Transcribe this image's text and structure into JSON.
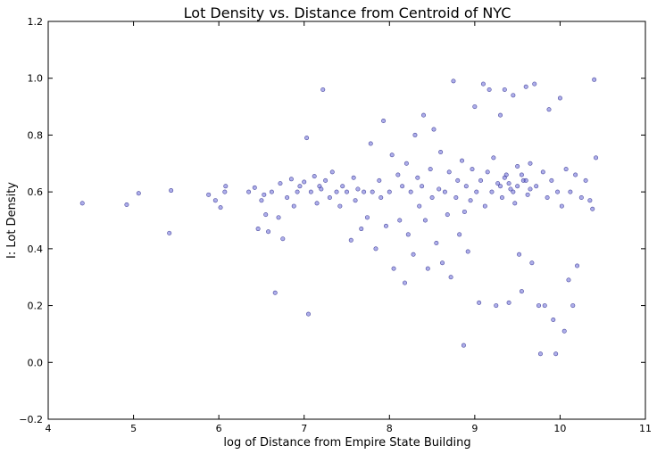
{
  "chart_data": {
    "type": "scatter",
    "title": "Lot Density vs. Distance from Centroid of NYC",
    "xlabel": "log of Distance from Empire State Building",
    "ylabel": "I: Lot Density",
    "xlim": [
      4,
      11
    ],
    "ylim": [
      -0.2,
      1.2
    ],
    "xticks": [
      "4",
      "5",
      "6",
      "7",
      "8",
      "9",
      "10",
      "11"
    ],
    "yticks": [
      "−0.2",
      "0.0",
      "0.2",
      "0.4",
      "0.6",
      "0.8",
      "1.0",
      "1.2"
    ],
    "grid": false,
    "legend": "none",
    "marker_color": "#6b6bd8",
    "marker_edge": "#1a1a80",
    "series": [
      {
        "points": [
          [
            4.4,
            0.56
          ],
          [
            4.92,
            0.555
          ],
          [
            5.06,
            0.595
          ],
          [
            5.42,
            0.455
          ],
          [
            5.44,
            0.605
          ],
          [
            5.88,
            0.59
          ],
          [
            5.96,
            0.57
          ],
          [
            6.02,
            0.545
          ],
          [
            6.07,
            0.6
          ],
          [
            6.08,
            0.62
          ],
          [
            6.35,
            0.6
          ],
          [
            6.42,
            0.615
          ],
          [
            6.46,
            0.47
          ],
          [
            6.5,
            0.57
          ],
          [
            6.53,
            0.59
          ],
          [
            6.55,
            0.52
          ],
          [
            6.58,
            0.46
          ],
          [
            6.62,
            0.6
          ],
          [
            6.66,
            0.245
          ],
          [
            6.7,
            0.51
          ],
          [
            6.72,
            0.63
          ],
          [
            6.75,
            0.435
          ],
          [
            6.8,
            0.58
          ],
          [
            6.85,
            0.645
          ],
          [
            6.88,
            0.55
          ],
          [
            6.92,
            0.6
          ],
          [
            6.95,
            0.62
          ],
          [
            7.0,
            0.635
          ],
          [
            7.03,
            0.79
          ],
          [
            7.05,
            0.17
          ],
          [
            7.08,
            0.6
          ],
          [
            7.12,
            0.655
          ],
          [
            7.15,
            0.56
          ],
          [
            7.18,
            0.62
          ],
          [
            7.2,
            0.61
          ],
          [
            7.22,
            0.96
          ],
          [
            7.25,
            0.64
          ],
          [
            7.3,
            0.58
          ],
          [
            7.33,
            0.67
          ],
          [
            7.38,
            0.6
          ],
          [
            7.42,
            0.55
          ],
          [
            7.45,
            0.62
          ],
          [
            7.5,
            0.6
          ],
          [
            7.55,
            0.43
          ],
          [
            7.58,
            0.65
          ],
          [
            7.6,
            0.57
          ],
          [
            7.63,
            0.61
          ],
          [
            7.67,
            0.47
          ],
          [
            7.7,
            0.6
          ],
          [
            7.74,
            0.51
          ],
          [
            7.78,
            0.77
          ],
          [
            7.8,
            0.6
          ],
          [
            7.84,
            0.4
          ],
          [
            7.88,
            0.64
          ],
          [
            7.9,
            0.58
          ],
          [
            7.93,
            0.85
          ],
          [
            7.96,
            0.48
          ],
          [
            8.0,
            0.6
          ],
          [
            8.03,
            0.73
          ],
          [
            8.05,
            0.33
          ],
          [
            8.1,
            0.66
          ],
          [
            8.12,
            0.5
          ],
          [
            8.15,
            0.62
          ],
          [
            8.18,
            0.28
          ],
          [
            8.2,
            0.7
          ],
          [
            8.22,
            0.45
          ],
          [
            8.25,
            0.6
          ],
          [
            8.28,
            0.38
          ],
          [
            8.3,
            0.8
          ],
          [
            8.33,
            0.65
          ],
          [
            8.35,
            0.55
          ],
          [
            8.38,
            0.62
          ],
          [
            8.4,
            0.87
          ],
          [
            8.42,
            0.5
          ],
          [
            8.45,
            0.33
          ],
          [
            8.48,
            0.68
          ],
          [
            8.5,
            0.58
          ],
          [
            8.52,
            0.82
          ],
          [
            8.55,
            0.42
          ],
          [
            8.58,
            0.61
          ],
          [
            8.6,
            0.74
          ],
          [
            8.62,
            0.35
          ],
          [
            8.65,
            0.6
          ],
          [
            8.68,
            0.52
          ],
          [
            8.7,
            0.67
          ],
          [
            8.72,
            0.3
          ],
          [
            8.75,
            0.99
          ],
          [
            8.78,
            0.58
          ],
          [
            8.8,
            0.64
          ],
          [
            8.82,
            0.45
          ],
          [
            8.85,
            0.71
          ],
          [
            8.87,
            0.06
          ],
          [
            8.88,
            0.53
          ],
          [
            8.9,
            0.62
          ],
          [
            8.92,
            0.39
          ],
          [
            8.95,
            0.57
          ],
          [
            8.97,
            0.68
          ],
          [
            9.0,
            0.9
          ],
          [
            9.02,
            0.6
          ],
          [
            9.05,
            0.21
          ],
          [
            9.07,
            0.64
          ],
          [
            9.1,
            0.98
          ],
          [
            9.12,
            0.55
          ],
          [
            9.15,
            0.67
          ],
          [
            9.17,
            0.96
          ],
          [
            9.2,
            0.6
          ],
          [
            9.22,
            0.72
          ],
          [
            9.25,
            0.2
          ],
          [
            9.27,
            0.63
          ],
          [
            9.3,
            0.87
          ],
          [
            9.32,
            0.58
          ],
          [
            9.35,
            0.96
          ],
          [
            9.37,
            0.66
          ],
          [
            9.4,
            0.21
          ],
          [
            9.42,
            0.61
          ],
          [
            9.45,
            0.94
          ],
          [
            9.47,
            0.56
          ],
          [
            9.5,
            0.69
          ],
          [
            9.52,
            0.38
          ],
          [
            9.55,
            0.25
          ],
          [
            9.57,
            0.64
          ],
          [
            9.6,
            0.97
          ],
          [
            9.62,
            0.59
          ],
          [
            9.65,
            0.7
          ],
          [
            9.67,
            0.35
          ],
          [
            9.7,
            0.98
          ],
          [
            9.72,
            0.62
          ],
          [
            9.75,
            0.2
          ],
          [
            9.77,
            0.03
          ],
          [
            9.8,
            0.67
          ],
          [
            9.82,
            0.2
          ],
          [
            9.85,
            0.58
          ],
          [
            9.87,
            0.89
          ],
          [
            9.9,
            0.64
          ],
          [
            9.92,
            0.15
          ],
          [
            9.95,
            0.03
          ],
          [
            9.97,
            0.6
          ],
          [
            10.0,
            0.93
          ],
          [
            10.02,
            0.55
          ],
          [
            10.05,
            0.11
          ],
          [
            10.07,
            0.68
          ],
          [
            10.1,
            0.29
          ],
          [
            10.12,
            0.6
          ],
          [
            10.15,
            0.2
          ],
          [
            10.18,
            0.66
          ],
          [
            10.2,
            0.34
          ],
          [
            10.25,
            0.58
          ],
          [
            10.3,
            0.64
          ],
          [
            10.35,
            0.57
          ],
          [
            10.4,
            0.995
          ],
          [
            10.42,
            0.72
          ],
          [
            10.38,
            0.54
          ],
          [
            9.3,
            0.62
          ],
          [
            9.4,
            0.63
          ],
          [
            9.5,
            0.62
          ],
          [
            9.6,
            0.64
          ],
          [
            9.45,
            0.6
          ],
          [
            9.55,
            0.66
          ],
          [
            9.35,
            0.65
          ],
          [
            9.65,
            0.61
          ]
        ]
      }
    ]
  }
}
